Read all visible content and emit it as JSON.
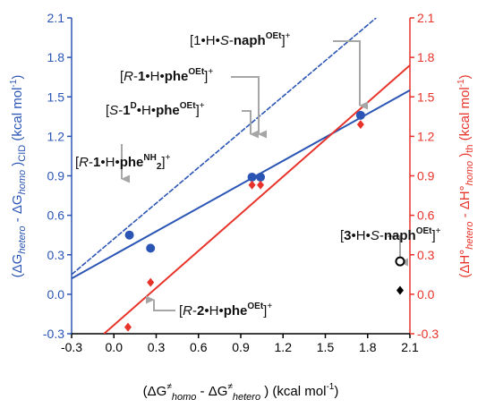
{
  "chart_data": {
    "type": "scatter",
    "x_axis": {
      "range": [
        -0.3,
        2.1
      ],
      "ticks": [
        "-0.3",
        "0.0",
        "0.3",
        "0.6",
        "0.9",
        "1.2",
        "1.5",
        "1.8",
        "2.1"
      ],
      "label": {
        "a": "(ΔG",
        "b": "≠",
        "c": "homo",
        "d": " - ΔG",
        "e": "≠",
        "f": "hetero",
        "g": " ) (kcal mol",
        "h": "-1",
        "i": ")"
      }
    },
    "y_left": {
      "range": [
        -0.3,
        2.1
      ],
      "ticks": [
        "-0.3",
        "0.0",
        "0.3",
        "0.6",
        "0.9",
        "1.2",
        "1.5",
        "1.8",
        "2.1"
      ],
      "label": {
        "a": "(ΔG",
        "b": "hetero",
        "c": " - ΔG",
        "d": "homo",
        "e": " )",
        "f": "CID",
        "g": " (kcal mol",
        "h": "-1",
        "i": ")"
      },
      "color": "#2b55b5"
    },
    "y_right": {
      "range": [
        -0.3,
        2.1
      ],
      "ticks": [
        "-0.3",
        "0.0",
        "0.3",
        "0.6",
        "0.9",
        "1.2",
        "1.5",
        "1.8",
        "2.1"
      ],
      "label": {
        "a": "(ΔH°",
        "b": "hetero",
        "c": " - ΔH°",
        "d": "homo",
        "e": " )",
        "f": "th",
        "g": " (kcal mol",
        "h": "-1",
        "i": ")"
      },
      "color": "#e8332a"
    },
    "series": [
      {
        "marker": "circle",
        "color": "#2b55b5",
        "points": [
          [
            0.11,
            0.45
          ],
          [
            0.26,
            0.35
          ],
          [
            0.98,
            0.89
          ],
          [
            1.04,
            0.89
          ],
          [
            1.75,
            1.36
          ]
        ]
      },
      {
        "marker": "diamond",
        "color": "#e8332a",
        "points": [
          [
            0.1,
            -0.25
          ],
          [
            0.26,
            0.09
          ],
          [
            0.98,
            0.83
          ],
          [
            1.04,
            0.83
          ],
          [
            1.75,
            1.29
          ]
        ]
      },
      {
        "marker": "open-circle",
        "color": "#000000",
        "points": [
          [
            2.03,
            0.25
          ]
        ]
      },
      {
        "marker": "diamond",
        "color": "#000000",
        "points": [
          [
            2.03,
            0.03
          ]
        ]
      }
    ],
    "fit_lines": [
      {
        "color": "#2b55b5",
        "from": [
          -0.3,
          0.12
        ],
        "to": [
          2.1,
          1.55
        ]
      },
      {
        "color": "#e8332a",
        "from": [
          -0.07,
          -0.3
        ],
        "to": [
          2.1,
          1.74
        ]
      },
      {
        "color": "#2b55b5",
        "style": "dashed",
        "from": [
          -0.3,
          0.15
        ],
        "to": [
          1.86,
          2.1
        ]
      }
    ],
    "annotations": [
      {
        "parts": [
          [
            "",
            "[1•H•"
          ],
          [
            "it",
            "S"
          ],
          [
            "",
            "-"
          ],
          [
            "b",
            "naph"
          ],
          [
            "bsup",
            "OEt"
          ],
          [
            "",
            "]"
          ],
          [
            "sup",
            "+"
          ]
        ]
      },
      {
        "parts": [
          [
            "",
            "["
          ],
          [
            "it",
            "R"
          ],
          [
            "",
            "-"
          ],
          [
            "b",
            "1"
          ],
          [
            "",
            "•H•"
          ],
          [
            "b",
            "phe"
          ],
          [
            "bsup",
            "OEt"
          ],
          [
            "",
            "]"
          ],
          [
            "sup",
            "+"
          ]
        ]
      },
      {
        "parts": [
          [
            "",
            "["
          ],
          [
            "it",
            "S"
          ],
          [
            "",
            "-"
          ],
          [
            "b",
            "1"
          ],
          [
            "bsup",
            "D"
          ],
          [
            "",
            "•H•"
          ],
          [
            "b",
            "phe"
          ],
          [
            "bsup",
            "OEt"
          ],
          [
            "",
            "]"
          ],
          [
            "sup",
            "+"
          ]
        ]
      },
      {
        "parts": [
          [
            "",
            "["
          ],
          [
            "it",
            "R"
          ],
          [
            "",
            "-"
          ],
          [
            "b",
            "1"
          ],
          [
            "",
            "•H•"
          ],
          [
            "b",
            "phe"
          ],
          [
            "bsup",
            "NH"
          ],
          [
            "bsub",
            "2"
          ],
          [
            "",
            "]"
          ],
          [
            "sup",
            "+"
          ]
        ]
      },
      {
        "parts": [
          [
            "",
            "["
          ],
          [
            "b",
            "3"
          ],
          [
            "",
            "•H•"
          ],
          [
            "it",
            "S"
          ],
          [
            "",
            "-"
          ],
          [
            "b",
            "naph"
          ],
          [
            "bsup",
            "OEt"
          ],
          [
            "",
            "]"
          ],
          [
            "sup",
            "+"
          ]
        ]
      },
      {
        "parts": [
          [
            "",
            "["
          ],
          [
            "it",
            "R"
          ],
          [
            "",
            "-"
          ],
          [
            "b",
            "2"
          ],
          [
            "",
            "•H•"
          ],
          [
            "b",
            "phe"
          ],
          [
            "bsup",
            "OEt"
          ],
          [
            "",
            "]"
          ],
          [
            "sup",
            "+"
          ]
        ]
      }
    ]
  }
}
